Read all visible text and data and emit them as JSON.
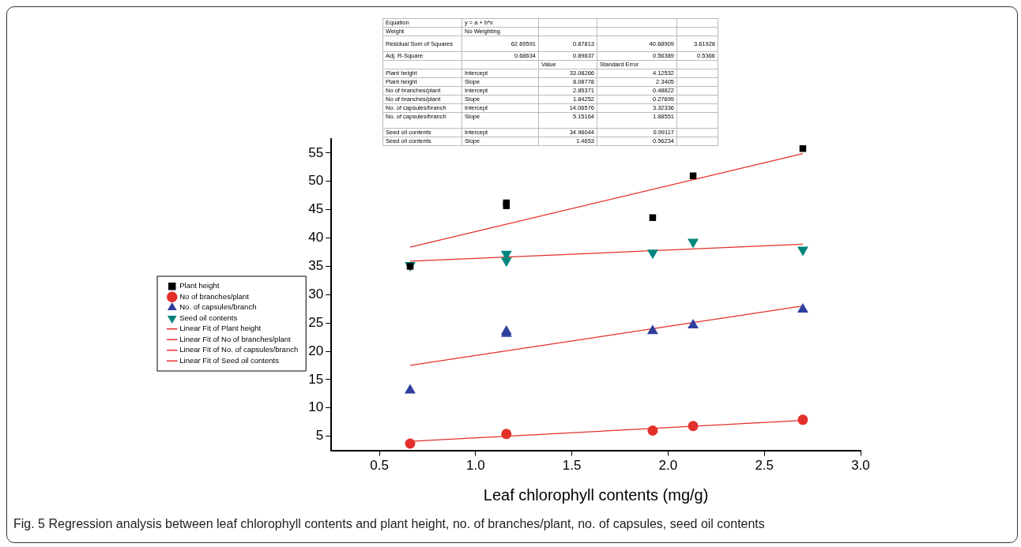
{
  "chart_data": {
    "type": "scatter",
    "title": "Fig. 5 Regression analysis between leaf chlorophyll contents and plant height, no. of branches/plant, no. of capsules, seed oil contents",
    "xlabel": "Leaf chlorophyll contents (mg/g)",
    "xlim": [
      0.25,
      3.0
    ],
    "xticks": [
      {
        "value": 0.5,
        "label": "0.5"
      },
      {
        "value": 1,
        "label": "1.0"
      },
      {
        "value": 1.5,
        "label": "1.5"
      },
      {
        "value": 2,
        "label": "2.0"
      },
      {
        "value": 2.5,
        "label": "2.5"
      },
      {
        "value": 3,
        "label": "3.0"
      }
    ],
    "ylim": [
      2.5,
      57.5
    ],
    "yticks": [
      5,
      10,
      15,
      20,
      25,
      30,
      35,
      40,
      45,
      50,
      55
    ],
    "legend": "left",
    "series": [
      {
        "name": "Plant height",
        "type": "scatter",
        "marker": "square",
        "color": "#000000",
        "x": [
          0.66,
          1.16,
          1.16,
          1.92,
          2.13,
          2.7
        ],
        "values": [
          35,
          46.2,
          45.7,
          43.6,
          51,
          55.8
        ]
      },
      {
        "name": "No of branches/plant",
        "type": "scatter",
        "marker": "circle",
        "color": "#e3302a",
        "x": [
          0.66,
          1.16,
          1.92,
          2.13,
          2.7
        ],
        "values": [
          3.7,
          5.4,
          6.0,
          6.8,
          7.9
        ]
      },
      {
        "name": "No. of capsules/branch",
        "type": "scatter",
        "marker": "triangle",
        "color": "#2e3f9e",
        "x": [
          0.66,
          1.16,
          1.16,
          1.92,
          2.13,
          2.7
        ],
        "values": [
          13.1,
          23.5,
          23.1,
          23.6,
          24.6,
          27.4
        ]
      },
      {
        "name": "Seed oil contents",
        "type": "scatter",
        "marker": "triangle-down",
        "color": "#00857d",
        "x": [
          0.66,
          1.16,
          1.16,
          1.92,
          2.13,
          2.7
        ],
        "values": [
          35.2,
          37.2,
          36.0,
          37.4,
          39.3,
          37.9
        ]
      },
      {
        "name": "Linear Fit of Plant height",
        "type": "line",
        "marker": "none",
        "line_style": "solid",
        "color": "#e3302a",
        "x": [
          0.66,
          2.7
        ],
        "values": [
          38.4,
          54.9
        ]
      },
      {
        "name": "Linear Fit of No of branches/plant",
        "type": "line",
        "marker": "none",
        "line_style": "solid",
        "color": "#e3302a",
        "x": [
          0.66,
          2.7
        ],
        "values": [
          4.1,
          7.8
        ]
      },
      {
        "name": "Linear Fit of No. of capsules/branch",
        "type": "line",
        "marker": "none",
        "line_style": "solid",
        "color": "#e3302a",
        "x": [
          0.66,
          2.7
        ],
        "values": [
          17.5,
          28.0
        ]
      },
      {
        "name": "Linear Fit of Seed oil contents",
        "type": "line",
        "marker": "none",
        "line_style": "solid",
        "color": "#e3302a",
        "x": [
          0.66,
          2.7
        ],
        "values": [
          35.9,
          38.9
        ]
      }
    ],
    "annotations": [
      "Equation",
      "y = a + b*x",
      null,
      null,
      null,
      "Weight",
      "No Weighting",
      null,
      null,
      null,
      "Residual Sum of Squares",
      "62.69591",
      "0.87813",
      "40.68909",
      "3.61928",
      "Adj. R-Square",
      "0.68634",
      "0.89637",
      "0.56389",
      "0.5366",
      null,
      null,
      "Value",
      "Standard Error",
      null,
      "Plant height",
      "Intercept",
      "33.08266",
      "4.12532",
      null,
      "Plant height",
      "Slope",
      "8.08778",
      "2.3405",
      null,
      "No of branches/plant",
      "Intercept",
      "2.85371",
      "0.48822",
      null,
      "No of branches/plant",
      "Slope",
      "1.84252",
      "0.27699",
      null,
      "No. of capsules/branch",
      "Intercept",
      "14.06576",
      "3.32336",
      null,
      "No. of capsules/branch",
      "Slope",
      "5.15164",
      "1.88551",
      null,
      "Seed oil contents",
      "Intercept",
      "34.96044",
      "0.99117",
      null,
      "Seed oil contents",
      "Slope",
      "1.4653",
      "0.56234",
      null
    ]
  }
}
